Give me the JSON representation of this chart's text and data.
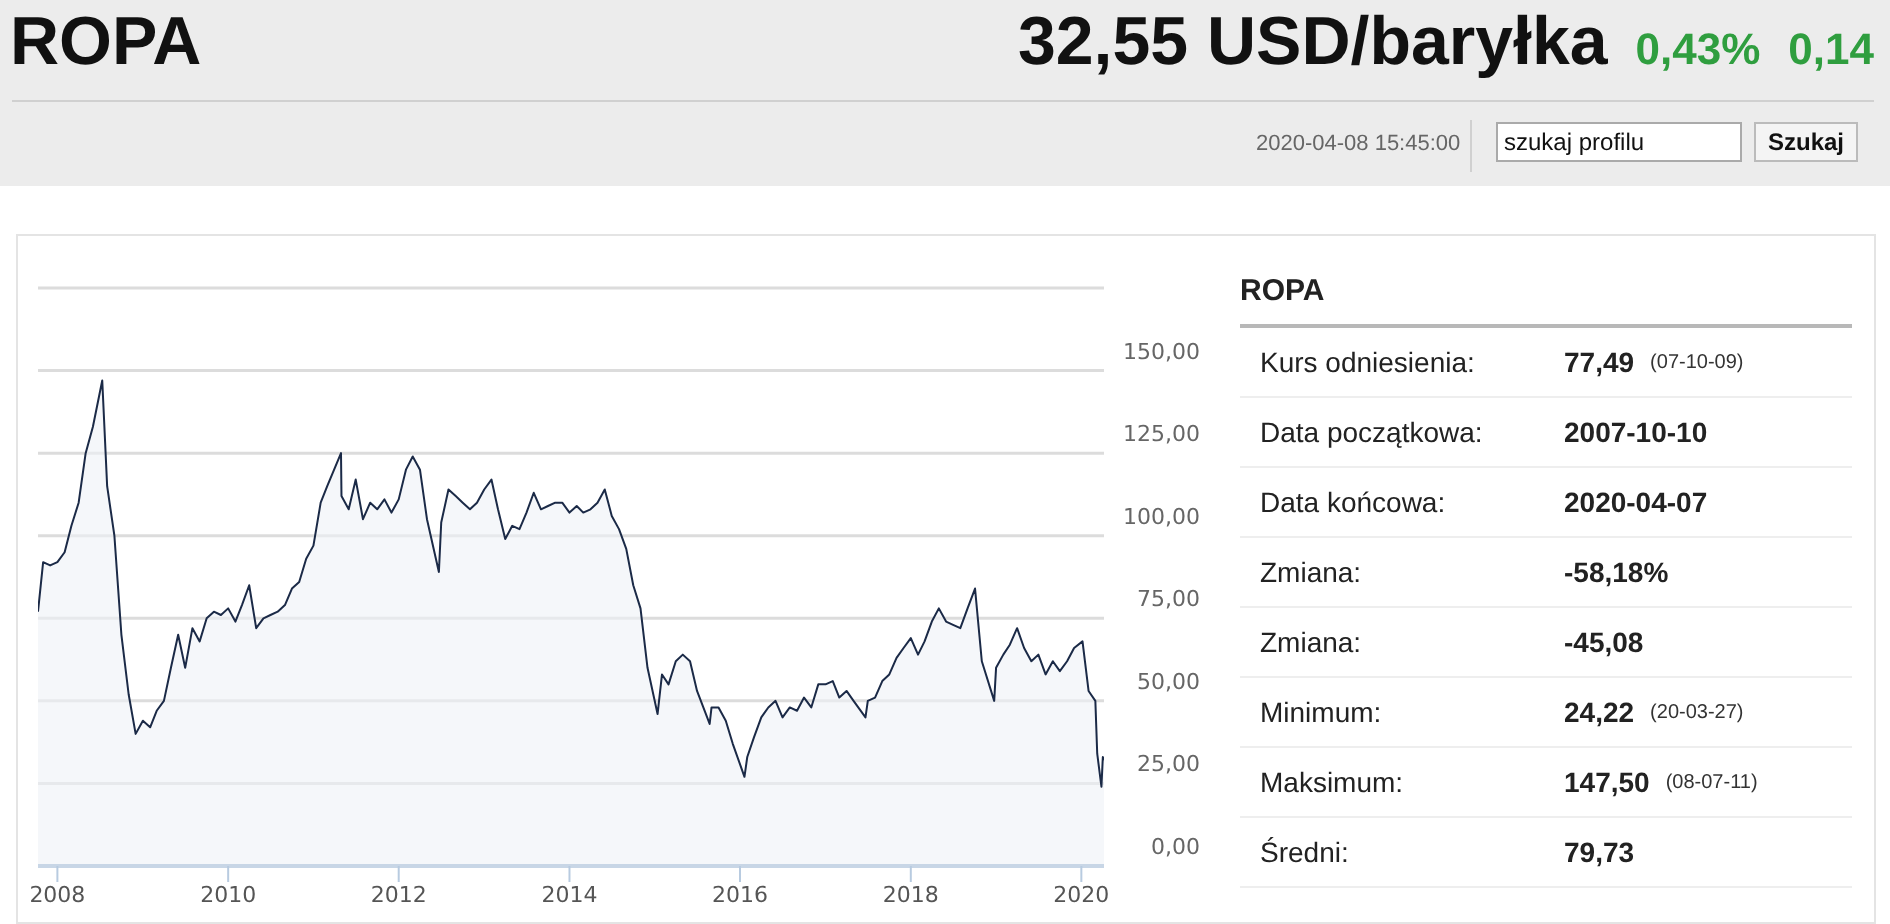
{
  "chart_data": [
    {
      "type": "area",
      "title": "ROPA",
      "subtitle": "32,55 USD/baryłka",
      "annotations": [
        "0,43%",
        "0,14",
        "2020-04-08 15:45:00",
        "szukaj profilu",
        "Szukaj"
      ],
      "x": [
        "2007-10-10",
        "2007-11",
        "2007-12",
        "2008-01",
        "2008-02",
        "2008-03",
        "2008-04",
        "2008-05",
        "2008-06",
        "2008-07-11",
        "2008-08",
        "2008-09",
        "2008-10",
        "2008-11",
        "2008-12",
        "2009-01",
        "2009-02",
        "2009-03",
        "2009-04",
        "2009-05",
        "2009-06",
        "2009-07",
        "2009-08",
        "2009-09",
        "2009-10",
        "2009-11",
        "2009-12",
        "2010-01",
        "2010-02",
        "2010-03",
        "2010-04",
        "2010-05",
        "2010-06",
        "2010-07",
        "2010-08",
        "2010-09",
        "2010-10",
        "2010-11",
        "2010-12",
        "2011-01",
        "2011-02",
        "2011-03",
        "2011-04-29",
        "2011-05",
        "2011-06",
        "2011-07",
        "2011-08",
        "2011-09",
        "2011-10",
        "2011-11",
        "2011-12",
        "2012-01",
        "2012-02",
        "2012-03",
        "2012-04",
        "2012-05",
        "2012-06-21",
        "2012-07",
        "2012-08",
        "2012-09",
        "2012-10",
        "2012-11",
        "2012-12",
        "2013-01",
        "2013-02",
        "2013-03",
        "2013-04",
        "2013-05",
        "2013-06",
        "2013-07",
        "2013-08",
        "2013-09",
        "2013-10",
        "2013-11",
        "2013-12",
        "2014-01",
        "2014-02",
        "2014-03",
        "2014-04",
        "2014-05",
        "2014-06",
        "2014-07",
        "2014-08",
        "2014-09",
        "2014-10",
        "2014-11",
        "2014-12",
        "2015-01-13",
        "2015-02",
        "2015-03",
        "2015-04",
        "2015-05",
        "2015-06",
        "2015-07",
        "2015-08-24",
        "2015-09",
        "2015-10",
        "2015-11",
        "2015-12",
        "2016-01-20",
        "2016-02",
        "2016-03",
        "2016-04",
        "2016-05",
        "2016-06",
        "2016-07",
        "2016-08",
        "2016-09",
        "2016-10",
        "2016-11",
        "2016-12",
        "2017-01",
        "2017-02",
        "2017-03",
        "2017-04",
        "2017-05",
        "2017-06-21",
        "2017-07",
        "2017-08",
        "2017-09",
        "2017-10",
        "2017-11",
        "2017-12",
        "2018-01",
        "2018-02",
        "2018-03",
        "2018-04",
        "2018-05",
        "2018-06",
        "2018-07",
        "2018-08",
        "2018-09",
        "2018-10-03",
        "2018-11",
        "2018-12-24",
        "2019-01",
        "2019-02",
        "2019-03",
        "2019-04",
        "2019-05",
        "2019-06",
        "2019-07",
        "2019-08",
        "2019-09",
        "2019-10",
        "2019-11",
        "2019-12",
        "2020-01-06",
        "2020-02",
        "2020-03-01",
        "2020-03-09",
        "2020-03-27",
        "2020-04-02",
        "2020-04-07"
      ],
      "series": [
        {
          "color": "#1b2a47",
          "values": [
            77,
            92,
            91,
            92,
            95,
            103,
            110,
            125,
            133,
            147,
            115,
            100,
            70,
            52,
            40,
            44,
            42,
            47,
            50,
            60,
            70,
            60,
            72,
            68,
            75,
            77,
            76,
            78,
            74,
            79,
            85,
            72,
            75,
            76,
            77,
            79,
            84,
            86,
            93,
            97,
            110,
            115,
            125,
            112,
            108,
            117,
            105,
            110,
            108,
            111,
            107,
            111,
            120,
            124,
            120,
            105,
            89,
            104,
            114,
            112,
            110,
            108,
            110,
            114,
            117,
            108,
            99,
            103,
            102,
            107,
            113,
            108,
            109,
            110,
            110,
            107,
            109,
            107,
            108,
            110,
            114,
            106,
            102,
            96,
            85,
            78,
            60,
            46,
            58,
            55,
            62,
            64,
            62,
            53,
            43,
            48,
            48,
            44,
            37,
            27,
            33,
            39,
            45,
            48,
            50,
            45,
            48,
            47,
            51,
            48,
            55,
            55,
            56,
            51,
            53,
            50,
            45,
            50,
            51,
            56,
            58,
            63,
            66,
            69,
            64,
            68,
            74,
            78,
            74,
            73,
            72,
            78,
            84,
            62,
            50,
            60,
            64,
            67,
            72,
            66,
            62,
            64,
            58,
            62,
            59,
            62,
            66,
            68,
            53,
            50,
            34,
            24,
            33,
            32
          ]
        }
      ],
      "xlim": [
        "2007-10-10",
        "2020-04-07"
      ],
      "xticks": [
        "2008",
        "2010",
        "2012",
        "2014",
        "2016",
        "2018",
        "2020"
      ],
      "ylim": [
        0,
        175
      ],
      "yticks": [
        {
          "value": 0,
          "label": "0,00"
        },
        {
          "value": 25,
          "label": "25,00"
        },
        {
          "value": 50,
          "label": "50,00"
        },
        {
          "value": 75,
          "label": "75,00"
        },
        {
          "value": 100,
          "label": "100,00"
        },
        {
          "value": 125,
          "label": "125,00"
        },
        {
          "value": 150,
          "label": "150,00"
        },
        {
          "value": 175,
          "label": null
        }
      ],
      "grid": "y",
      "marker": "none",
      "line_style": "solid"
    },
    {
      "type": "other",
      "title": "ROPA",
      "annotations": [
        "Kurs odniesienia:",
        "77,49",
        "(07-10-09)",
        "Data początkowa:",
        "2007-10-10",
        "Data końcowa:",
        "2020-04-07",
        "Zmiana:",
        "-58,18%",
        "Zmiana:",
        "-45,08",
        "Minimum:",
        "24,22",
        "(20-03-27)",
        "Maksimum:",
        "147,50",
        "(08-07-11)",
        "Średni:",
        "79,73"
      ]
    }
  ]
}
